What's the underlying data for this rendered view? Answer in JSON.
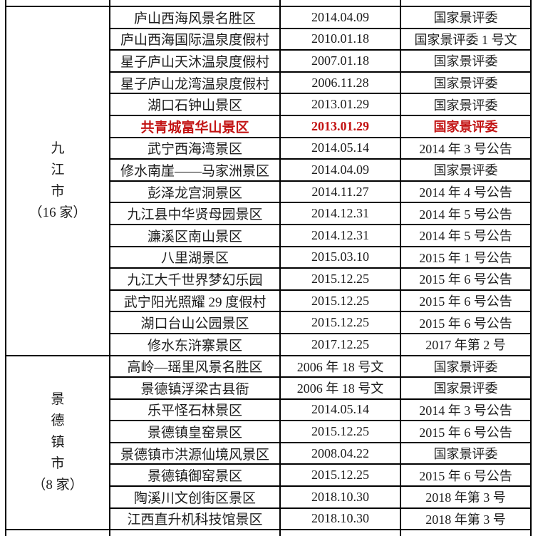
{
  "table": {
    "description_colors": {
      "border": "#000000",
      "text": "#1c1c1c",
      "highlight_text": "#c31414",
      "background": "#ffffff"
    },
    "sections": [
      {
        "city_chars": [
          "九",
          "江",
          "市",
          "（16 家）"
        ],
        "rows": [
          {
            "name": "庐山西海风景名胜区",
            "date": "2014.04.09",
            "authority": "国家景评委",
            "highlight": false
          },
          {
            "name": "庐山西海国际温泉度假村",
            "date": "2010.01.18",
            "authority": "国家景评委 1 号文",
            "highlight": false
          },
          {
            "name": "星子庐山天沐温泉度假村",
            "date": "2007.01.18",
            "authority": "国家景评委",
            "highlight": false
          },
          {
            "name": "星子庐山龙湾温泉度假村",
            "date": "2006.11.28",
            "authority": "国家景评委",
            "highlight": false
          },
          {
            "name": "湖口石钟山景区",
            "date": "2013.01.29",
            "authority": "国家景评委",
            "highlight": false
          },
          {
            "name": "共青城富华山景区",
            "date": "2013.01.29",
            "authority": "国家景评委",
            "highlight": true
          },
          {
            "name": "武宁西海湾景区",
            "date": "2014.05.14",
            "authority": "2014 年 3 号公告",
            "highlight": false
          },
          {
            "name": "修水南崖——马家洲景区",
            "date": "2014.04.09",
            "authority": "国家景评委",
            "highlight": false
          },
          {
            "name": "彭泽龙宫洞景区",
            "date": "2014.11.27",
            "authority": "2014 年 4 号公告",
            "highlight": false
          },
          {
            "name": "九江县中华贤母园景区",
            "date": "2014.12.31",
            "authority": "2014 年 5 号公告",
            "highlight": false
          },
          {
            "name": "濂溪区南山景区",
            "date": "2014.12.31",
            "authority": "2014 年 5 号公告",
            "highlight": false
          },
          {
            "name": "八里湖景区",
            "date": "2015.03.10",
            "authority": "2015 年 1 号公告",
            "highlight": false
          },
          {
            "name": "九江大千世界梦幻乐园",
            "date": "2015.12.25",
            "authority": "2015 年 6 号公告",
            "highlight": false
          },
          {
            "name": "武宁阳光照耀 29 度假村",
            "date": "2015.12.25",
            "authority": "2015 年 6 号公告",
            "highlight": false
          },
          {
            "name": "湖口台山公园景区",
            "date": "2015.12.25",
            "authority": "2015 年 6 号公告",
            "highlight": false
          },
          {
            "name": "修水东浒寨景区",
            "date": "2017.12.25",
            "authority": "2017 年第 2 号",
            "highlight": false
          }
        ]
      },
      {
        "city_chars": [
          "景",
          "德",
          "镇",
          "市",
          "（8 家）"
        ],
        "rows": [
          {
            "name": "高岭—瑶里风景名胜区",
            "date": "2006 年 18 号文",
            "authority": "国家景评委",
            "highlight": false
          },
          {
            "name": "景德镇浮梁古县衙",
            "date": "2006 年 18 号文",
            "authority": "国家景评委",
            "highlight": false
          },
          {
            "name": "乐平怪石林景区",
            "date": "2014.05.14",
            "authority": "2014 年 3 号公告",
            "highlight": false
          },
          {
            "name": "景德镇皇窑景区",
            "date": "2015.12.25",
            "authority": "2015 年 6 号公告",
            "highlight": false
          },
          {
            "name": "景德镇市洪源仙境风景区",
            "date": "2008.04.22",
            "authority": "国家景评委",
            "highlight": false
          },
          {
            "name": "景德镇御窑景区",
            "date": "2015.12.25",
            "authority": "2015 年 6 号公告",
            "highlight": false
          },
          {
            "name": "陶溪川文创街区景区",
            "date": "2018.10.30",
            "authority": "2018 年第 3 号",
            "highlight": false
          },
          {
            "name": "江西直升机科技馆景区",
            "date": "2018.10.30",
            "authority": "2018 年第 3 号",
            "highlight": false
          }
        ]
      }
    ]
  }
}
